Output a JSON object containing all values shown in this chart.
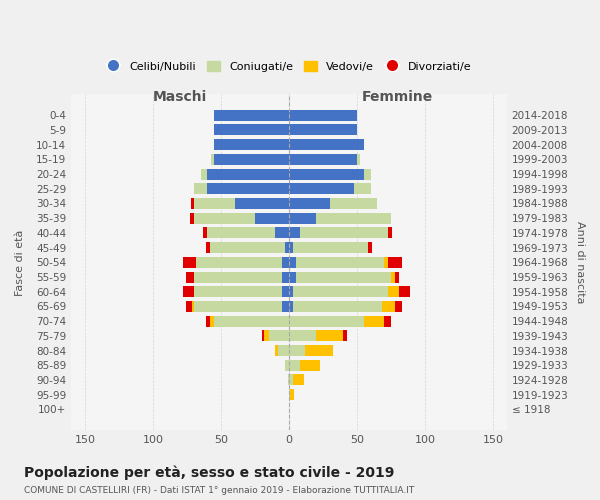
{
  "age_groups": [
    "100+",
    "95-99",
    "90-94",
    "85-89",
    "80-84",
    "75-79",
    "70-74",
    "65-69",
    "60-64",
    "55-59",
    "50-54",
    "45-49",
    "40-44",
    "35-39",
    "30-34",
    "25-29",
    "20-24",
    "15-19",
    "10-14",
    "5-9",
    "0-4"
  ],
  "birth_years": [
    "≤ 1918",
    "1919-1923",
    "1924-1928",
    "1929-1933",
    "1934-1938",
    "1939-1943",
    "1944-1948",
    "1949-1953",
    "1954-1958",
    "1959-1963",
    "1964-1968",
    "1969-1973",
    "1974-1978",
    "1979-1983",
    "1984-1988",
    "1989-1993",
    "1994-1998",
    "1999-2003",
    "2004-2008",
    "2009-2013",
    "2014-2018"
  ],
  "maschi": {
    "celibi": [
      0,
      0,
      0,
      0,
      0,
      0,
      0,
      5,
      5,
      5,
      5,
      3,
      10,
      25,
      40,
      60,
      60,
      55,
      55,
      55,
      55
    ],
    "coniugati": [
      0,
      0,
      1,
      3,
      8,
      15,
      55,
      65,
      65,
      65,
      63,
      55,
      50,
      45,
      30,
      10,
      5,
      2,
      0,
      0,
      0
    ],
    "vedovi": [
      0,
      0,
      0,
      0,
      2,
      3,
      3,
      1,
      0,
      0,
      0,
      0,
      0,
      0,
      0,
      0,
      0,
      0,
      0,
      0,
      0
    ],
    "divorziati": [
      0,
      0,
      0,
      0,
      0,
      2,
      3,
      5,
      8,
      6,
      10,
      3,
      3,
      3,
      2,
      0,
      0,
      0,
      0,
      0,
      0
    ]
  },
  "femmine": {
    "nubili": [
      0,
      0,
      0,
      0,
      0,
      0,
      0,
      3,
      3,
      5,
      5,
      3,
      8,
      20,
      30,
      48,
      55,
      50,
      55,
      50,
      50
    ],
    "coniugate": [
      0,
      1,
      3,
      8,
      12,
      20,
      55,
      65,
      70,
      70,
      65,
      55,
      65,
      55,
      35,
      12,
      5,
      2,
      0,
      0,
      0
    ],
    "vedove": [
      0,
      3,
      8,
      15,
      20,
      20,
      15,
      10,
      8,
      3,
      3,
      0,
      0,
      0,
      0,
      0,
      0,
      0,
      0,
      0,
      0
    ],
    "divorziate": [
      0,
      0,
      0,
      0,
      0,
      3,
      5,
      5,
      8,
      3,
      10,
      3,
      3,
      0,
      0,
      0,
      0,
      0,
      0,
      0,
      0
    ]
  },
  "colors": {
    "celibi": "#4472c4",
    "coniugati": "#c5d9a0",
    "vedovi": "#ffc000",
    "divorziati": "#e00000"
  },
  "xlim": 160,
  "title": "Popolazione per età, sesso e stato civile - 2019",
  "subtitle": "COMUNE DI CASTELLIRI (FR) - Dati ISTAT 1° gennaio 2019 - Elaborazione TUTTITALIA.IT",
  "maschi_label": "Maschi",
  "femmine_label": "Femmine",
  "ylabel_left": "Fasce di età",
  "ylabel_right": "Anni di nascita",
  "legend": [
    "Celibi/Nubili",
    "Coniugati/e",
    "Vedovi/e",
    "Divorziati/e"
  ],
  "bg_color": "#f5f5f5",
  "grid_color": "#cccccc"
}
